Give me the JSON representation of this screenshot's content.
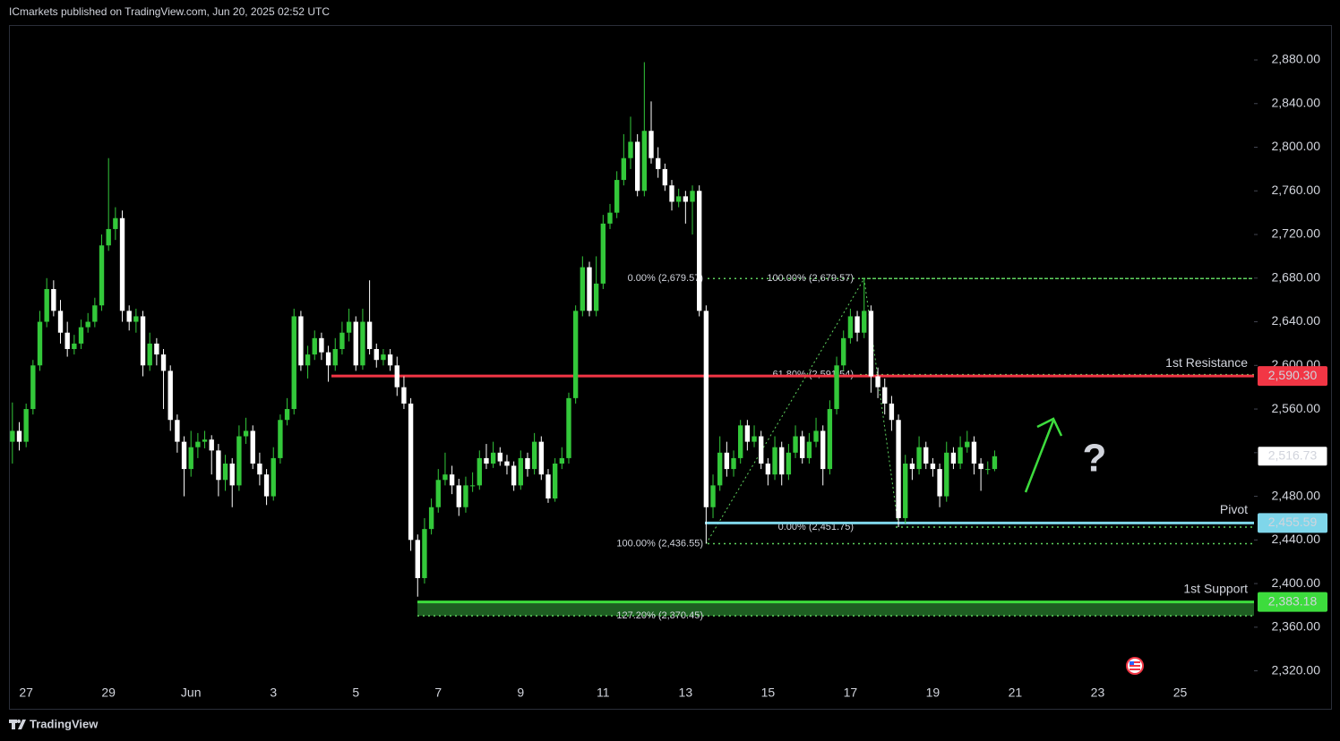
{
  "header": "ICmarkets published on TradingView.com, Jun 20, 2025 02:52 UTC",
  "footer": "TradingView",
  "chart_data": {
    "type": "candlestick",
    "up_color": "#33c83a",
    "down_color": "#ffffff",
    "categories": [
      null,
      null,
      "27",
      null,
      null,
      null,
      null,
      null,
      null,
      null,
      null,
      null,
      null,
      null,
      "29",
      null,
      null,
      null,
      null,
      null,
      null,
      null,
      null,
      null,
      null,
      null,
      "Jun",
      null,
      null,
      null,
      null,
      null,
      null,
      null,
      null,
      null,
      null,
      null,
      "3",
      null,
      null,
      null,
      null,
      null,
      null,
      null,
      null,
      null,
      null,
      null,
      "5",
      null,
      null,
      null,
      null,
      null,
      null,
      null,
      null,
      null,
      null,
      null,
      "7",
      null,
      null,
      null,
      null,
      null,
      null,
      null,
      null,
      null,
      null,
      null,
      "9",
      null,
      null,
      null,
      null,
      null,
      null,
      null,
      null,
      null,
      null,
      null,
      "11",
      null,
      null,
      null,
      null,
      null,
      null,
      null,
      null,
      null,
      null,
      null,
      "13",
      null,
      null,
      null,
      null,
      null,
      null,
      null,
      null,
      null,
      null,
      null,
      "15",
      null,
      null,
      null,
      null,
      null,
      null,
      null,
      null,
      null,
      null,
      null,
      "17",
      null,
      null,
      null,
      null,
      null,
      null,
      null,
      null,
      null,
      null,
      null,
      "19",
      null,
      null,
      null,
      null,
      null,
      null,
      null,
      null,
      null,
      null,
      null,
      "21",
      null,
      null,
      null,
      null,
      null,
      null,
      null,
      null,
      null,
      null,
      null,
      "23",
      null,
      null,
      null,
      null,
      null,
      null,
      null,
      null,
      null,
      null,
      null,
      "25",
      null,
      null,
      null,
      null,
      null,
      null,
      null,
      null,
      null,
      null
    ],
    "open": [
      2530,
      2540,
      2530,
      2560,
      2600,
      2640,
      2670,
      2650,
      2630,
      2615,
      2620,
      2635,
      2640,
      2655,
      2710,
      2725,
      2735,
      2650,
      2640,
      2645,
      2600,
      2620,
      2610,
      2595,
      2550,
      2530,
      2505,
      2525,
      2530,
      2532,
      2522,
      2495,
      2510,
      2490,
      2535,
      2540,
      2510,
      2500,
      2480,
      2515,
      2550,
      2560,
      2645,
      2600,
      2610,
      2625,
      2612,
      2600,
      2615,
      2630,
      2640,
      2600,
      2640,
      2615,
      2605,
      2610,
      2600,
      2580,
      2565,
      2440,
      2405,
      2450,
      2470,
      2495,
      2500,
      2490,
      2470,
      2490,
      2490,
      2515,
      2510,
      2520,
      2512,
      2508,
      2490,
      2515,
      2505,
      2530,
      2500,
      2478,
      2510,
      2515,
      2570,
      2650,
      2690,
      2650,
      2675,
      2730,
      2740,
      2770,
      2790,
      2805,
      2760,
      2815,
      2790,
      2780,
      2765,
      2750,
      2755,
      2750,
      2760,
      2650,
      2470,
      2490,
      2520,
      2505,
      2515,
      2545,
      2530,
      2535,
      2510,
      2500,
      2525,
      2500,
      2520,
      2535,
      2515,
      2530,
      2540,
      2505,
      2560,
      2600,
      2625,
      2645,
      2630,
      2650,
      2590,
      2580,
      2565,
      2550,
      2460,
      2510,
      2505,
      2525,
      2510,
      2505,
      2480,
      2520,
      2510,
      2525,
      2530,
      2510,
      2505,
      2505,
      null,
      null,
      null,
      null,
      null,
      null,
      null,
      null,
      null,
      null,
      null,
      null,
      null,
      null,
      null,
      null,
      null,
      null,
      null,
      null,
      null,
      null,
      null,
      null,
      null,
      null,
      null,
      null,
      null,
      null,
      null,
      null,
      null,
      null,
      null,
      null,
      null
    ],
    "high": [
      2566,
      2548,
      2565,
      2605,
      2650,
      2680,
      2678,
      2660,
      2640,
      2628,
      2642,
      2648,
      2662,
      2720,
      2790,
      2745,
      2742,
      2655,
      2652,
      2650,
      2630,
      2625,
      2615,
      2600,
      2555,
      2535,
      2540,
      2538,
      2540,
      2536,
      2528,
      2518,
      2515,
      2545,
      2552,
      2545,
      2520,
      2505,
      2525,
      2555,
      2570,
      2652,
      2650,
      2618,
      2632,
      2630,
      2618,
      2625,
      2640,
      2652,
      2645,
      2652,
      2678,
      2620,
      2615,
      2615,
      2608,
      2590,
      2570,
      2445,
      2460,
      2478,
      2505,
      2520,
      2508,
      2496,
      2498,
      2502,
      2522,
      2528,
      2530,
      2525,
      2518,
      2512,
      2522,
      2520,
      2538,
      2535,
      2505,
      2515,
      2525,
      2575,
      2655,
      2700,
      2695,
      2700,
      2738,
      2748,
      2778,
      2812,
      2828,
      2812,
      2878,
      2842,
      2800,
      2785,
      2770,
      2762,
      2760,
      2765,
      2765,
      2655,
      2500,
      2535,
      2530,
      2522,
      2550,
      2550,
      2545,
      2540,
      2515,
      2535,
      2530,
      2528,
      2545,
      2540,
      2538,
      2552,
      2545,
      2568,
      2608,
      2632,
      2652,
      2650,
      2679.57,
      2655,
      2598,
      2588,
      2572,
      2555,
      2518,
      2515,
      2535,
      2530,
      2515,
      2510,
      2530,
      2525,
      2535,
      2540,
      2535,
      2515,
      2512,
      2522,
      null,
      null,
      null,
      null,
      null,
      null,
      null,
      null,
      null,
      null,
      null,
      null,
      null,
      null,
      null,
      null,
      null,
      null,
      null,
      null,
      null,
      null,
      null,
      null,
      null,
      null,
      null,
      null,
      null,
      null,
      null,
      null,
      null,
      null,
      null,
      null,
      null
    ],
    "low": [
      2510,
      2522,
      2525,
      2555,
      2595,
      2635,
      2645,
      2620,
      2608,
      2610,
      2615,
      2630,
      2635,
      2650,
      2705,
      2715,
      2640,
      2632,
      2630,
      2590,
      2595,
      2600,
      2560,
      2540,
      2520,
      2480,
      2498,
      2515,
      2524,
      2500,
      2480,
      2485,
      2470,
      2485,
      2528,
      2505,
      2490,
      2472,
      2476,
      2510,
      2545,
      2555,
      2595,
      2588,
      2605,
      2605,
      2585,
      2595,
      2610,
      2622,
      2595,
      2596,
      2610,
      2598,
      2600,
      2595,
      2572,
      2560,
      2430,
      2388,
      2400,
      2445,
      2465,
      2490,
      2482,
      2462,
      2465,
      2484,
      2486,
      2505,
      2506,
      2508,
      2500,
      2485,
      2486,
      2498,
      2500,
      2495,
      2474,
      2475,
      2505,
      2510,
      2565,
      2645,
      2645,
      2645,
      2670,
      2725,
      2735,
      2765,
      2780,
      2755,
      2755,
      2785,
      2772,
      2760,
      2742,
      2745,
      2730,
      2720,
      2645,
      2436.55,
      2460,
      2485,
      2498,
      2498,
      2510,
      2522,
      2525,
      2505,
      2490,
      2495,
      2490,
      2495,
      2515,
      2510,
      2510,
      2525,
      2490,
      2500,
      2555,
      2595,
      2620,
      2622,
      2625,
      2575,
      2570,
      2555,
      2540,
      2451.75,
      2455,
      2495,
      2500,
      2505,
      2498,
      2470,
      2475,
      2505,
      2505,
      2520,
      2500,
      2485,
      2500,
      2503,
      null,
      null,
      null,
      null,
      null,
      null,
      null,
      null,
      null,
      null,
      null,
      null,
      null,
      null,
      null,
      null,
      null,
      null,
      null,
      null,
      null,
      null,
      null,
      null,
      null,
      null,
      null,
      null,
      null,
      null,
      null,
      null,
      null,
      null,
      null,
      null,
      null
    ],
    "close": [
      2540,
      2530,
      2560,
      2600,
      2640,
      2670,
      2650,
      2630,
      2615,
      2620,
      2635,
      2640,
      2655,
      2710,
      2725,
      2735,
      2650,
      2640,
      2645,
      2600,
      2620,
      2610,
      2595,
      2550,
      2530,
      2505,
      2525,
      2530,
      2532,
      2522,
      2495,
      2510,
      2490,
      2535,
      2540,
      2510,
      2500,
      2480,
      2515,
      2550,
      2560,
      2645,
      2600,
      2610,
      2625,
      2612,
      2600,
      2615,
      2630,
      2640,
      2600,
      2640,
      2615,
      2605,
      2610,
      2600,
      2580,
      2565,
      2440,
      2405,
      2450,
      2470,
      2495,
      2500,
      2490,
      2470,
      2490,
      2490,
      2515,
      2510,
      2520,
      2512,
      2508,
      2490,
      2515,
      2505,
      2530,
      2500,
      2478,
      2510,
      2515,
      2570,
      2650,
      2690,
      2650,
      2675,
      2730,
      2740,
      2770,
      2790,
      2805,
      2760,
      2815,
      2790,
      2780,
      2765,
      2750,
      2755,
      2750,
      2760,
      2650,
      2470,
      2490,
      2520,
      2505,
      2515,
      2545,
      2530,
      2535,
      2510,
      2500,
      2525,
      2500,
      2520,
      2535,
      2515,
      2530,
      2540,
      2505,
      2560,
      2600,
      2625,
      2645,
      2630,
      2650,
      2590,
      2580,
      2565,
      2550,
      2460,
      2510,
      2505,
      2525,
      2510,
      2505,
      2480,
      2520,
      2510,
      2525,
      2530,
      2510,
      2505,
      2505,
      2516.73,
      null,
      null,
      null,
      null,
      null,
      null,
      null,
      null,
      null,
      null,
      null,
      null,
      null,
      null,
      null,
      null,
      null,
      null,
      null,
      null,
      null,
      null,
      null,
      null,
      null,
      null,
      null,
      null,
      null,
      null,
      null,
      null,
      null,
      null,
      null,
      null,
      null
    ],
    "ylim": [
      2309,
      2912
    ],
    "yticks": [
      {
        "value": 2320,
        "label": "2,320.00"
      },
      {
        "value": 2360,
        "label": "2,360.00"
      },
      {
        "value": 2400,
        "label": "2,400.00"
      },
      {
        "value": 2440,
        "label": "2,440.00"
      },
      {
        "value": 2480,
        "label": "2,480.00"
      },
      {
        "value": 2520,
        "label": "2,520.00"
      },
      {
        "value": 2560,
        "label": "2,560.00"
      },
      {
        "value": 2600,
        "label": "2,600.00"
      },
      {
        "value": 2640,
        "label": "2,640.00"
      },
      {
        "value": 2680,
        "label": "2,680.00"
      },
      {
        "value": 2720,
        "label": "2,720.00"
      },
      {
        "value": 2760,
        "label": "2,760.00"
      },
      {
        "value": 2800,
        "label": "2,800.00"
      },
      {
        "value": 2840,
        "label": "2,840.00"
      },
      {
        "value": 2880,
        "label": "2,880.00"
      }
    ],
    "levels": [
      {
        "name": "1st Resistance",
        "value": 2590.3,
        "label": "2,590.30",
        "color": "#f23645"
      },
      {
        "name": "Pivot",
        "value": 2455.59,
        "label": "2,455.59",
        "color": "#7fd6ea"
      },
      {
        "name": "1st Support",
        "value": 2383.18,
        "label": "2,383.18",
        "color": "#3ddc3d"
      }
    ],
    "last_price": {
      "value": 2516.73,
      "label": "2,516.73"
    },
    "fib_color": "#5fd35f",
    "fib_levels": [
      {
        "label": "0.00% (2,679.57)",
        "value": 2679.57
      },
      {
        "label": "100.00% (2,679.57)",
        "value": 2679.57
      },
      {
        "label": "61.80% (2,591.54)",
        "value": 2591.54
      },
      {
        "label": "0.00% (2,451.75)",
        "value": 2451.75
      },
      {
        "label": "100.00% (2,436.55)",
        "value": 2436.55
      },
      {
        "label": "127.20% (2,370.45)",
        "value": 2370.45
      }
    ]
  }
}
